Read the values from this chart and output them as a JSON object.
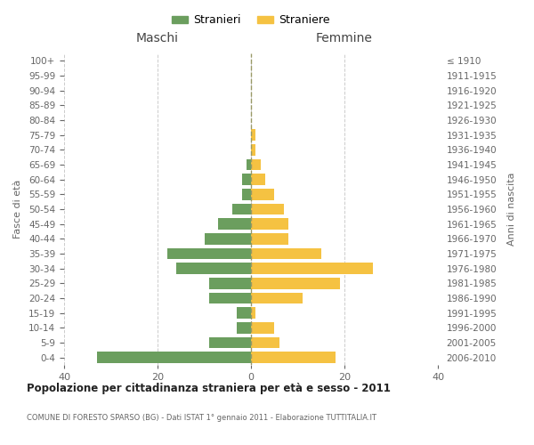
{
  "age_groups": [
    "0-4",
    "5-9",
    "10-14",
    "15-19",
    "20-24",
    "25-29",
    "30-34",
    "35-39",
    "40-44",
    "45-49",
    "50-54",
    "55-59",
    "60-64",
    "65-69",
    "70-74",
    "75-79",
    "80-84",
    "85-89",
    "90-94",
    "95-99",
    "100+"
  ],
  "birth_years": [
    "2006-2010",
    "2001-2005",
    "1996-2000",
    "1991-1995",
    "1986-1990",
    "1981-1985",
    "1976-1980",
    "1971-1975",
    "1966-1970",
    "1961-1965",
    "1956-1960",
    "1951-1955",
    "1946-1950",
    "1941-1945",
    "1936-1940",
    "1931-1935",
    "1926-1930",
    "1921-1925",
    "1916-1920",
    "1911-1915",
    "≤ 1910"
  ],
  "maschi": [
    33,
    9,
    3,
    3,
    9,
    9,
    16,
    18,
    10,
    7,
    4,
    2,
    2,
    1,
    0,
    0,
    0,
    0,
    0,
    0,
    0
  ],
  "femmine": [
    18,
    6,
    5,
    1,
    11,
    19,
    26,
    15,
    8,
    8,
    7,
    5,
    3,
    2,
    1,
    1,
    0,
    0,
    0,
    0,
    0
  ],
  "color_maschi": "#6b9e5e",
  "color_femmine": "#f5c242",
  "title": "Popolazione per cittadinanza straniera per età e sesso - 2011",
  "subtitle": "COMUNE DI FORESTO SPARSO (BG) - Dati ISTAT 1° gennaio 2011 - Elaborazione TUTTITALIA.IT",
  "xlabel_left": "Maschi",
  "xlabel_right": "Femmine",
  "ylabel_left": "Fasce di età",
  "ylabel_right": "Anni di nascita",
  "legend_maschi": "Stranieri",
  "legend_femmine": "Straniere",
  "xlim": 40,
  "bg_color": "#ffffff",
  "grid_color": "#cccccc"
}
